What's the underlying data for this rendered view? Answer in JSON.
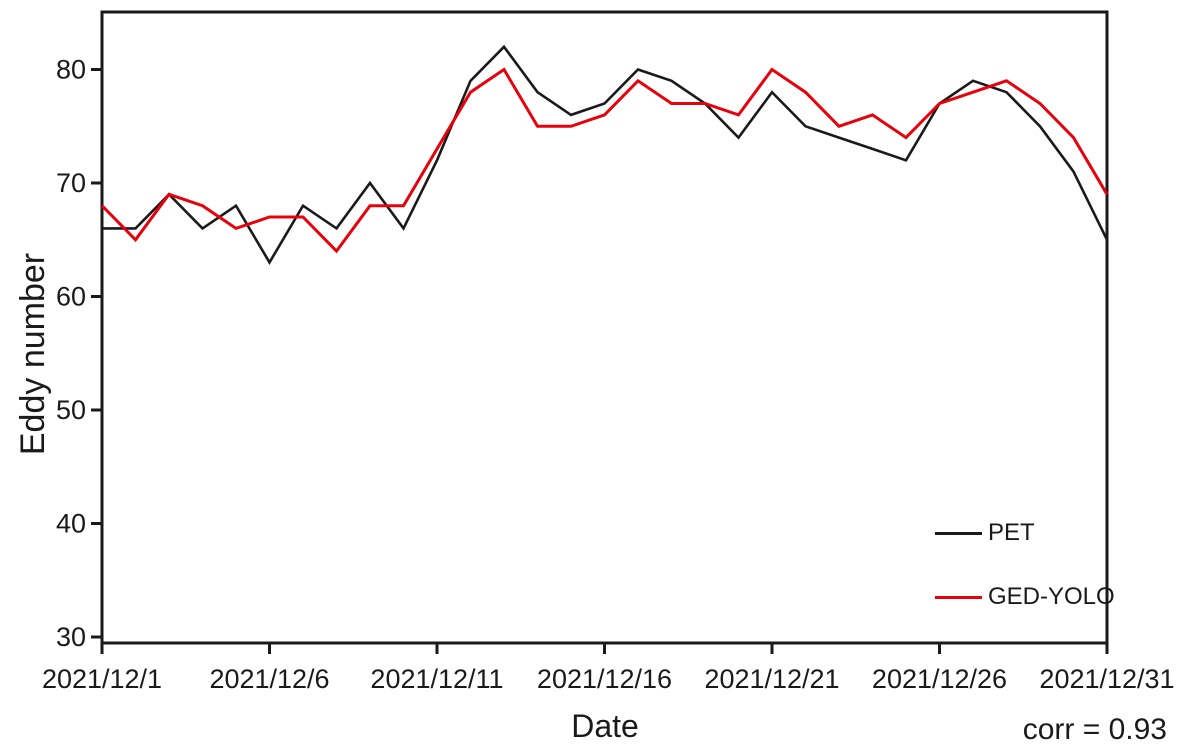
{
  "figure": {
    "background": "#ffffff",
    "axis_color": "#1a1a1a"
  },
  "chart_data": {
    "type": "line",
    "title": "",
    "xlabel": "Date",
    "ylabel": "Eddy number",
    "annotation": "corr = 0.93",
    "grid": false,
    "legend_position": "lower right inside plot",
    "ylim": [
      29.5,
      85
    ],
    "y_ticks": [
      30,
      40,
      50,
      60,
      70,
      80
    ],
    "x_tick_labels": [
      "2021/12/1",
      "2021/12/6",
      "2021/12/11",
      "2021/12/16",
      "2021/12/21",
      "2021/12/26",
      "2021/12/31"
    ],
    "x": [
      "2021/12/1",
      "2021/12/2",
      "2021/12/3",
      "2021/12/4",
      "2021/12/5",
      "2021/12/6",
      "2021/12/7",
      "2021/12/8",
      "2021/12/9",
      "2021/12/10",
      "2021/12/11",
      "2021/12/12",
      "2021/12/13",
      "2021/12/14",
      "2021/12/15",
      "2021/12/16",
      "2021/12/17",
      "2021/12/18",
      "2021/12/19",
      "2021/12/20",
      "2021/12/21",
      "2021/12/22",
      "2021/12/23",
      "2021/12/24",
      "2021/12/25",
      "2021/12/26",
      "2021/12/27",
      "2021/12/28",
      "2021/12/29",
      "2021/12/30",
      "2021/12/31"
    ],
    "series": [
      {
        "name": "PET",
        "color": "#1a1a1a",
        "values": [
          66,
          66,
          69,
          66,
          68,
          63,
          68,
          66,
          70,
          66,
          72,
          79,
          82,
          78,
          76,
          77,
          80,
          79,
          77,
          74,
          78,
          75,
          74,
          73,
          72,
          77,
          79,
          78,
          75,
          71,
          65
        ]
      },
      {
        "name": "GED-YOLO",
        "color": "#e8000b",
        "values": [
          68,
          65,
          69,
          68,
          66,
          67,
          67,
          64,
          68,
          68,
          73,
          78,
          80,
          75,
          75,
          76,
          79,
          77,
          77,
          76,
          80,
          78,
          75,
          76,
          74,
          77,
          78,
          79,
          77,
          74,
          69
        ]
      }
    ]
  }
}
